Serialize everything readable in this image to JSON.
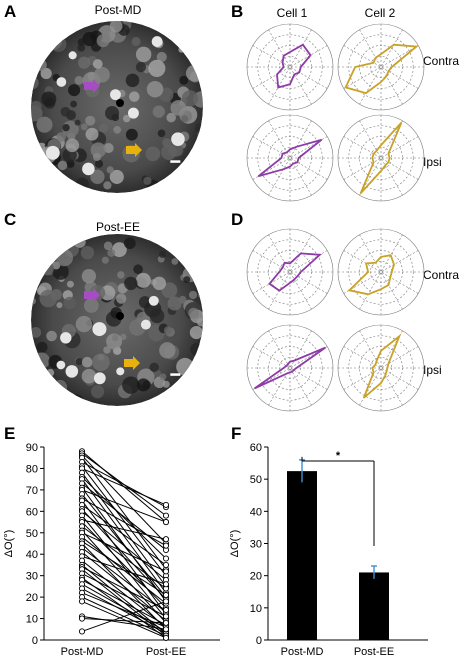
{
  "panels": {
    "A": {
      "letter": "A",
      "title": "Post-MD"
    },
    "B": {
      "letter": "B",
      "col1": "Cell 1",
      "col2": "Cell 2",
      "row1": "Contra",
      "row2": "Ipsi"
    },
    "C": {
      "letter": "C",
      "title": "Post-EE"
    },
    "D": {
      "letter": "D",
      "row1": "Contra",
      "row2": "Ipsi"
    },
    "E": {
      "letter": "E"
    },
    "F": {
      "letter": "F"
    }
  },
  "colors": {
    "cell1": "#8e3aa8",
    "cell2": "#c9a227",
    "arrow_purple": "#a64dc4",
    "arrow_yellow": "#e8b20e",
    "bar": "#000000",
    "errbar": "#3a8fd8"
  },
  "polar": {
    "B_contra_cell1": [
      0.25,
      0.55,
      0.6,
      0.35,
      0.3,
      0.2,
      0.15,
      0.35,
      0.55,
      0.4,
      0.2,
      0.25
    ],
    "B_contra_cell2": [
      0.25,
      0.95,
      0.6,
      0.3,
      0.25,
      0.2,
      0.6,
      0.95,
      0.7,
      0.35,
      0.25,
      0.2
    ],
    "B_ipsi_cell1": [
      0.2,
      0.85,
      0.3,
      0.2,
      0.15,
      0.2,
      0.2,
      0.85,
      0.3,
      0.2,
      0.15,
      0.2
    ],
    "B_ipsi_cell2": [
      0.2,
      0.2,
      0.95,
      0.3,
      0.2,
      0.2,
      0.2,
      0.2,
      0.95,
      0.3,
      0.2,
      0.2
    ],
    "D_contra_cell1": [
      0.25,
      0.8,
      0.5,
      0.2,
      0.25,
      0.2,
      0.25,
      0.55,
      0.5,
      0.25,
      0.2,
      0.2
    ],
    "D_contra_cell2": [
      0.25,
      0.35,
      0.45,
      0.35,
      0.25,
      0.4,
      0.3,
      0.85,
      0.6,
      0.4,
      0.35,
      0.25
    ],
    "D_ipsi_cell1": [
      0.15,
      0.95,
      0.2,
      0.15,
      0.1,
      0.1,
      0.15,
      0.95,
      0.15,
      0.1,
      0.1,
      0.1
    ],
    "D_ipsi_cell2": [
      0.15,
      0.2,
      0.85,
      0.4,
      0.2,
      0.15,
      0.2,
      0.2,
      0.8,
      0.35,
      0.2,
      0.15
    ]
  },
  "chart_data": [
    {
      "panel": "E",
      "type": "line",
      "title": "",
      "xlabel": "",
      "ylabel": "ΔO(°)",
      "categories": [
        "Post-MD",
        "Post-EE"
      ],
      "ylim": [
        0,
        90
      ],
      "yticks": [
        "0",
        "10",
        "20",
        "30",
        "40",
        "50",
        "60",
        "70",
        "80",
        "90"
      ],
      "pairs": [
        [
          88,
          55
        ],
        [
          87,
          58
        ],
        [
          86,
          45
        ],
        [
          85,
          33
        ],
        [
          83,
          62
        ],
        [
          81,
          30
        ],
        [
          80,
          63
        ],
        [
          78,
          25
        ],
        [
          76,
          38
        ],
        [
          75,
          22
        ],
        [
          73,
          42
        ],
        [
          71,
          18
        ],
        [
          70,
          55
        ],
        [
          68,
          20
        ],
        [
          66,
          44
        ],
        [
          65,
          12
        ],
        [
          63,
          35
        ],
        [
          61,
          19
        ],
        [
          60,
          28
        ],
        [
          58,
          10
        ],
        [
          56,
          47
        ],
        [
          55,
          15
        ],
        [
          53,
          24
        ],
        [
          51,
          8
        ],
        [
          50,
          32
        ],
        [
          48,
          17
        ],
        [
          46,
          21
        ],
        [
          45,
          5
        ],
        [
          43,
          13
        ],
        [
          41,
          9
        ],
        [
          39,
          26
        ],
        [
          37,
          6
        ],
        [
          35,
          3
        ],
        [
          34,
          14
        ],
        [
          33,
          2
        ],
        [
          31,
          11
        ],
        [
          29,
          1
        ],
        [
          28,
          7
        ],
        [
          26,
          4
        ],
        [
          24,
          3
        ],
        [
          22,
          6
        ],
        [
          20,
          2
        ],
        [
          18,
          1
        ],
        [
          11,
          5
        ],
        [
          10,
          8
        ],
        [
          4,
          18
        ]
      ]
    },
    {
      "panel": "F",
      "type": "bar",
      "title": "",
      "xlabel": "",
      "ylabel": "ΔO(°)",
      "categories": [
        "Post-MD",
        "Post-EE"
      ],
      "values": [
        52.5,
        21
      ],
      "errors": [
        3.5,
        2
      ],
      "ylim": [
        0,
        60
      ],
      "yticks": [
        "0",
        "10",
        "20",
        "30",
        "40",
        "50",
        "60"
      ],
      "significance": "*"
    }
  ]
}
